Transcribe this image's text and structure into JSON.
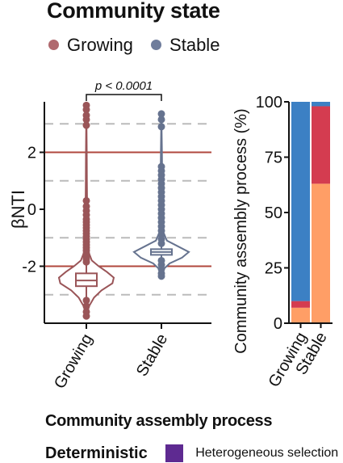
{
  "legend": {
    "title": "Community state",
    "items": [
      {
        "label": "Growing",
        "color": "#b0696e"
      },
      {
        "label": "Stable",
        "color": "#6f7d9c"
      }
    ]
  },
  "colors": {
    "growing": "#9a5558",
    "stable": "#66738f",
    "threshold_line": "#b0473d",
    "grid": "#bbbbbb",
    "heterogeneous_selection": "#5e2a91"
  },
  "chart_data": [
    {
      "type": "violin",
      "xlabel": "",
      "ylabel": "βNTI",
      "ylim": [
        -4,
        4
      ],
      "yticks": [
        -2,
        0,
        2
      ],
      "categories": [
        "Growing",
        "Stable"
      ],
      "reference_lines_solid": [
        -2,
        2
      ],
      "reference_lines_dashed": [
        -3,
        -1,
        1,
        3
      ],
      "significance": "p < 0.0001",
      "series": [
        {
          "name": "Growing",
          "median": -2.5,
          "q1": -2.7,
          "q3": -2.25,
          "min": -3.75,
          "max": 3.65,
          "density": [
            [
              -3.75,
              0.0
            ],
            [
              -3.4,
              0.1
            ],
            [
              -3.1,
              0.28
            ],
            [
              -2.85,
              0.55
            ],
            [
              -2.6,
              0.95
            ],
            [
              -2.4,
              1.0
            ],
            [
              -2.2,
              0.75
            ],
            [
              -2.0,
              0.45
            ],
            [
              -1.8,
              0.2
            ],
            [
              -1.5,
              0.08
            ],
            [
              -1.0,
              0.04
            ],
            [
              0.0,
              0.03
            ],
            [
              1.0,
              0.02
            ],
            [
              2.0,
              0.015
            ],
            [
              3.65,
              0.0
            ]
          ],
          "outliers": [
            3.65,
            3.5,
            3.3,
            3.15,
            2.95,
            0.3,
            0.1,
            -0.05,
            -0.2,
            -0.35,
            -0.45,
            -0.55,
            -0.65,
            -0.75,
            -0.85,
            -0.95,
            -1.05,
            -1.15,
            -1.25,
            -1.35,
            -1.45,
            -1.55,
            -1.65,
            -1.75,
            -1.85,
            -3.2,
            -3.4,
            -3.6,
            -3.75
          ]
        },
        {
          "name": "Stable",
          "median": -1.5,
          "q1": -1.6,
          "q3": -1.4,
          "min": -2.35,
          "max": 3.35,
          "density": [
            [
              -2.35,
              0.0
            ],
            [
              -2.1,
              0.08
            ],
            [
              -1.9,
              0.3
            ],
            [
              -1.7,
              0.75
            ],
            [
              -1.5,
              1.0
            ],
            [
              -1.3,
              0.6
            ],
            [
              -1.1,
              0.2
            ],
            [
              -0.8,
              0.07
            ],
            [
              0.0,
              0.04
            ],
            [
              1.0,
              0.03
            ],
            [
              2.0,
              0.02
            ],
            [
              3.35,
              0.0
            ]
          ],
          "outliers": [
            3.35,
            3.15,
            2.9,
            1.5,
            1.35,
            1.2,
            1.05,
            0.9,
            0.75,
            0.6,
            0.45,
            0.3,
            0.15,
            0.0,
            -0.15,
            -0.3,
            -0.45,
            -0.6,
            -0.75,
            -0.9,
            -1.05,
            -1.2,
            -1.8,
            -1.95,
            -2.1,
            -2.25,
            -2.35
          ]
        }
      ]
    },
    {
      "type": "bar",
      "stacked": true,
      "ylabel": "Community assembly process (%)",
      "ylim": [
        0,
        100
      ],
      "yticks": [
        0,
        25,
        50,
        75,
        100
      ],
      "categories": [
        "Growing",
        "Stable"
      ],
      "series": [
        {
          "color": "#ff9e66",
          "values": [
            7,
            63
          ]
        },
        {
          "color": "#d43c50",
          "values": [
            3,
            35
          ]
        },
        {
          "color": "#3c80c4",
          "values": [
            90,
            2
          ]
        }
      ]
    }
  ],
  "process_legend": {
    "title": "Community assembly process",
    "deterministic_label": "Deterministic",
    "heterogeneous_label": "Heterogeneous selection"
  }
}
